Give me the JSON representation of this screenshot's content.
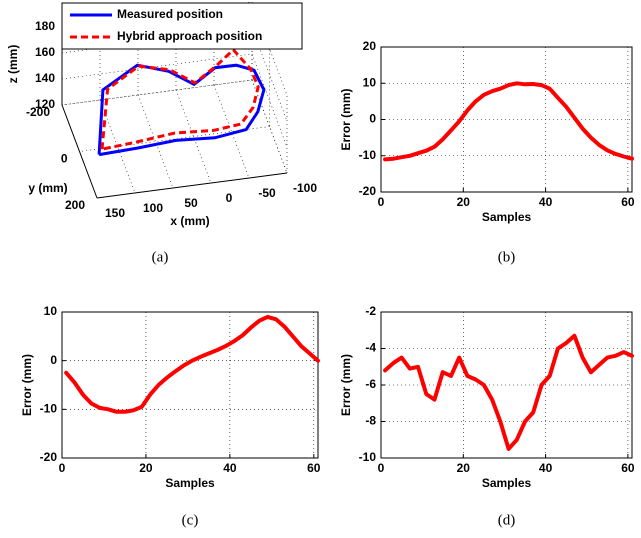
{
  "chart_data": [
    {
      "type": "line3d",
      "caption": "(a)",
      "xlabel": "x (mm)",
      "ylabel": "y (mm)",
      "zlabel": "z (mm)",
      "xlim": [
        -100,
        150
      ],
      "ylim": [
        -200,
        200
      ],
      "zlim": [
        120,
        180
      ],
      "xticks": [
        -100,
        -50,
        0,
        50,
        100,
        150
      ],
      "yticks": [
        -200,
        0,
        200
      ],
      "zticks": [
        120,
        140,
        160,
        180
      ],
      "grid": true,
      "legend": "top",
      "series": [
        {
          "name": "Measured position",
          "color": "#0000ff",
          "linestyle": "solid",
          "x": [
            130,
            110,
            60,
            20,
            -10,
            -40,
            -70,
            -90,
            -95,
            -80,
            -60,
            -20,
            30,
            80,
            130
          ],
          "y": [
            50,
            -80,
            -120,
            -110,
            -80,
            -100,
            -120,
            -90,
            -20,
            40,
            80,
            70,
            60,
            60,
            50
          ],
          "z": [
            125,
            150,
            158,
            152,
            145,
            152,
            148,
            148,
            145,
            140,
            135,
            130,
            130,
            128,
            125
          ]
        },
        {
          "name": "Hybrid approach position",
          "color": "#ff0000",
          "linestyle": "dashed",
          "x": [
            125,
            105,
            60,
            20,
            -10,
            -40,
            -65,
            -85,
            -88,
            -75,
            -55,
            -20,
            30,
            80,
            125
          ],
          "y": [
            40,
            -70,
            -105,
            -100,
            -70,
            -90,
            -110,
            -85,
            -25,
            30,
            65,
            55,
            45,
            45,
            40
          ],
          "z": [
            127,
            152,
            160,
            155,
            148,
            155,
            162,
            150,
            147,
            142,
            137,
            133,
            133,
            130,
            127
          ]
        }
      ]
    },
    {
      "type": "line",
      "caption": "(b)",
      "xlabel": "Samples",
      "ylabel": "Error (mm)",
      "xlim": [
        0,
        61
      ],
      "ylim": [
        -20,
        20
      ],
      "xticks": [
        0,
        20,
        40,
        60
      ],
      "yticks": [
        -20,
        -10,
        0,
        10,
        20
      ],
      "grid": true,
      "x": [
        1,
        3,
        5,
        7,
        9,
        11,
        13,
        15,
        17,
        19,
        21,
        23,
        25,
        27,
        29,
        31,
        33,
        35,
        37,
        39,
        41,
        43,
        45,
        47,
        49,
        51,
        53,
        55,
        57,
        59,
        61
      ],
      "series": [
        {
          "color": "#ff0000",
          "values": [
            -11,
            -10.8,
            -10.4,
            -10,
            -9.3,
            -8.6,
            -7.5,
            -5.5,
            -3,
            -0.5,
            2.5,
            5,
            6.8,
            7.8,
            8.5,
            9.5,
            10,
            9.7,
            9.8,
            9.5,
            8.5,
            6,
            3.5,
            0.5,
            -2.5,
            -5,
            -7,
            -8.5,
            -9.5,
            -10.2,
            -10.8
          ]
        }
      ]
    },
    {
      "type": "line",
      "caption": "(c)",
      "xlabel": "Samples",
      "ylabel": "Error (mm)",
      "xlim": [
        0,
        61
      ],
      "ylim": [
        -20,
        10
      ],
      "xticks": [
        0,
        20,
        40,
        60
      ],
      "yticks": [
        -20,
        -10,
        0,
        10
      ],
      "grid": true,
      "x": [
        1,
        3,
        5,
        7,
        9,
        11,
        13,
        15,
        17,
        19,
        21,
        23,
        25,
        27,
        29,
        31,
        33,
        35,
        37,
        39,
        41,
        43,
        45,
        47,
        49,
        51,
        53,
        55,
        57,
        59,
        61
      ],
      "series": [
        {
          "color": "#ff0000",
          "values": [
            -2.5,
            -4.5,
            -7,
            -8.8,
            -9.7,
            -10,
            -10.5,
            -10.5,
            -10.2,
            -9.5,
            -7,
            -5,
            -3.5,
            -2.2,
            -1,
            0,
            0.8,
            1.5,
            2.2,
            3,
            4,
            5.2,
            6.8,
            8.2,
            9,
            8.5,
            7,
            5,
            3,
            1.5,
            0
          ]
        }
      ]
    },
    {
      "type": "line",
      "caption": "(d)",
      "xlabel": "Samples",
      "ylabel": "Error (mm)",
      "xlim": [
        0,
        61
      ],
      "ylim": [
        -10,
        -2
      ],
      "xticks": [
        0,
        20,
        40,
        60
      ],
      "yticks": [
        -10,
        -8,
        -6,
        -4,
        -2
      ],
      "grid": true,
      "x": [
        1,
        3,
        5,
        7,
        9,
        11,
        13,
        15,
        17,
        19,
        21,
        23,
        25,
        27,
        29,
        31,
        33,
        35,
        37,
        39,
        41,
        43,
        45,
        47,
        49,
        51,
        53,
        55,
        57,
        59,
        61
      ],
      "series": [
        {
          "color": "#ff0000",
          "values": [
            -5.2,
            -4.8,
            -4.5,
            -5.1,
            -5,
            -6.5,
            -6.8,
            -5.3,
            -5.5,
            -4.5,
            -5.5,
            -5.7,
            -6,
            -6.8,
            -8,
            -9.5,
            -9,
            -8,
            -7.5,
            -6,
            -5.5,
            -4,
            -3.7,
            -3.3,
            -4.5,
            -5.3,
            -4.9,
            -4.5,
            -4.4,
            -4.2,
            -4.4
          ]
        }
      ]
    }
  ]
}
